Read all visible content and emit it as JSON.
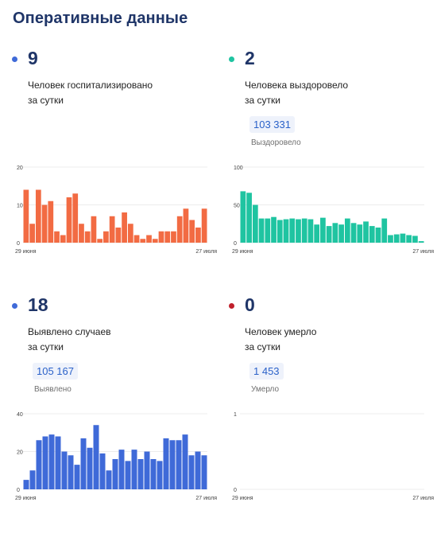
{
  "page_title": "Оперативные данные",
  "panels": [
    {
      "value": "9",
      "desc1": "Человек госпитализировано",
      "desc2": "за сутки",
      "badge": "",
      "badge_label": "",
      "dot_color": "#3f6ad8"
    },
    {
      "value": "2",
      "desc1": "Человека выздоровело",
      "desc2": "за сутки",
      "badge": "103 331",
      "badge_label": "Выздоровело",
      "dot_color": "#1fc4a1"
    },
    {
      "value": "18",
      "desc1": "Выявлено случаев",
      "desc2": "за сутки",
      "badge": "105 167",
      "badge_label": "Выявлено",
      "dot_color": "#3f6ad8"
    },
    {
      "value": "0",
      "desc1": "Человек умерло",
      "desc2": "за сутки",
      "badge": "1 453",
      "badge_label": "Умерло",
      "dot_color": "#c0202c"
    }
  ],
  "chart_data": [
    {
      "type": "bar",
      "color": "#f26b43",
      "ylim": [
        0,
        20
      ],
      "yticks": [
        "20",
        "10",
        "0"
      ],
      "xlabels": [
        "29 июня",
        "27 июля"
      ],
      "values": [
        14,
        5,
        14,
        10,
        11,
        3,
        2,
        12,
        13,
        5,
        3,
        7,
        1,
        3,
        7,
        4,
        8,
        5,
        2,
        1,
        2,
        1,
        3,
        3,
        3,
        7,
        9,
        6,
        4,
        9
      ]
    },
    {
      "type": "bar",
      "color": "#1fc4a1",
      "ylim": [
        0,
        100
      ],
      "yticks": [
        "100",
        "50",
        "0"
      ],
      "xlabels": [
        "29 июня",
        "27 июля"
      ],
      "values": [
        68,
        66,
        50,
        32,
        32,
        34,
        30,
        31,
        32,
        31,
        32,
        31,
        24,
        33,
        22,
        26,
        24,
        32,
        26,
        24,
        28,
        22,
        20,
        32,
        10,
        11,
        12,
        10,
        9,
        2
      ]
    },
    {
      "type": "bar",
      "color": "#3f6ad8",
      "ylim": [
        0,
        40
      ],
      "yticks": [
        "40",
        "20",
        "0"
      ],
      "xlabels": [
        "29 июня",
        "27 июля"
      ],
      "values": [
        5,
        10,
        26,
        28,
        29,
        28,
        20,
        18,
        13,
        27,
        22,
        34,
        19,
        10,
        16,
        21,
        15,
        21,
        16,
        20,
        16,
        15,
        27,
        26,
        26,
        29,
        18,
        20,
        18
      ]
    },
    {
      "type": "bar",
      "color": "#c0202c",
      "ylim": [
        0,
        1
      ],
      "yticks": [
        "1",
        "0"
      ],
      "xlabels": [
        "29 июня",
        "27 июля"
      ],
      "values": []
    }
  ]
}
